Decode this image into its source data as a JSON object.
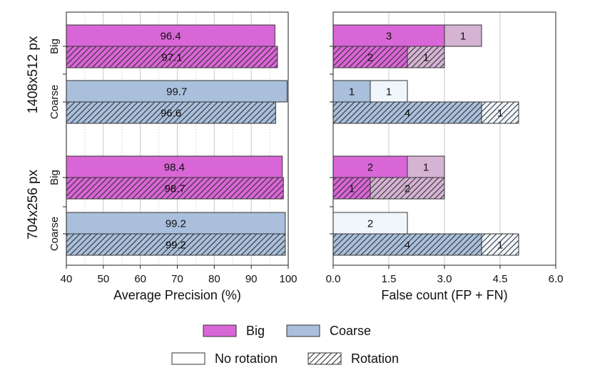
{
  "chart_data": [
    {
      "type": "bar",
      "orientation": "horizontal",
      "xlabel": "Average Precision (%)",
      "xlim": [
        40,
        100
      ],
      "xticks": [
        "40",
        "50",
        "60",
        "70",
        "80",
        "90",
        "100"
      ],
      "grid": true,
      "groups": [
        {
          "name": "1408x512 px",
          "rows": [
            {
              "category": "Big",
              "rotation": "No rotation",
              "value": 96.4,
              "label": "96.4"
            },
            {
              "category": "Big",
              "rotation": "Rotation",
              "value": 97.1,
              "label": "97.1"
            },
            {
              "category": "Coarse",
              "rotation": "No rotation",
              "value": 99.7,
              "label": "99.7"
            },
            {
              "category": "Coarse",
              "rotation": "Rotation",
              "value": 96.6,
              "label": "96.6"
            }
          ]
        },
        {
          "name": "704x256 px",
          "rows": [
            {
              "category": "Big",
              "rotation": "No rotation",
              "value": 98.4,
              "label": "98.4"
            },
            {
              "category": "Big",
              "rotation": "Rotation",
              "value": 98.7,
              "label": "98.7"
            },
            {
              "category": "Coarse",
              "rotation": "No rotation",
              "value": 99.2,
              "label": "99.2"
            },
            {
              "category": "Coarse",
              "rotation": "Rotation",
              "value": 99.2,
              "label": "99.2"
            }
          ]
        }
      ]
    },
    {
      "type": "bar",
      "orientation": "horizontal",
      "stacked": true,
      "xlabel": "False count (FP + FN)",
      "xlim": [
        0,
        6
      ],
      "xticks": [
        "0.0",
        "1.5",
        "3.0",
        "4.5",
        "6.0"
      ],
      "grid": true,
      "stack_parts": [
        "FP",
        "FN"
      ],
      "groups": [
        {
          "name": "1408x512 px",
          "rows": [
            {
              "category": "Big",
              "rotation": "No rotation",
              "values": [
                3,
                1
              ],
              "labels": [
                "3",
                "1"
              ]
            },
            {
              "category": "Big",
              "rotation": "Rotation",
              "values": [
                2,
                1
              ],
              "labels": [
                "2",
                "1"
              ]
            },
            {
              "category": "Coarse",
              "rotation": "No rotation",
              "values": [
                1,
                1
              ],
              "labels": [
                "1",
                "1"
              ]
            },
            {
              "category": "Coarse",
              "rotation": "Rotation",
              "values": [
                4,
                1
              ],
              "labels": [
                "4",
                "1"
              ]
            }
          ]
        },
        {
          "name": "704x256 px",
          "rows": [
            {
              "category": "Big",
              "rotation": "No rotation",
              "values": [
                2,
                1
              ],
              "labels": [
                "2",
                "1"
              ]
            },
            {
              "category": "Big",
              "rotation": "Rotation",
              "values": [
                1,
                2
              ],
              "labels": [
                "1",
                "2"
              ]
            },
            {
              "category": "Coarse",
              "rotation": "No rotation",
              "values": [
                0,
                2
              ],
              "labels": [
                "",
                "2"
              ]
            },
            {
              "category": "Coarse",
              "rotation": "Rotation",
              "values": [
                4,
                1
              ],
              "labels": [
                "4",
                "1"
              ]
            }
          ]
        }
      ]
    }
  ],
  "legend": {
    "placement": "bottom",
    "categories": [
      {
        "name": "Big",
        "color": "#d966d6"
      },
      {
        "name": "Coarse",
        "color": "#a9bfdc"
      }
    ],
    "styles": [
      {
        "name": "No rotation",
        "hatch": false
      },
      {
        "name": "Rotation",
        "hatch": true
      }
    ]
  },
  "colors": {
    "Big": "#d966d6",
    "Big_light": "#d5b3d3",
    "Coarse": "#a9bfdc",
    "Coarse_light": "#f0f6fc"
  }
}
